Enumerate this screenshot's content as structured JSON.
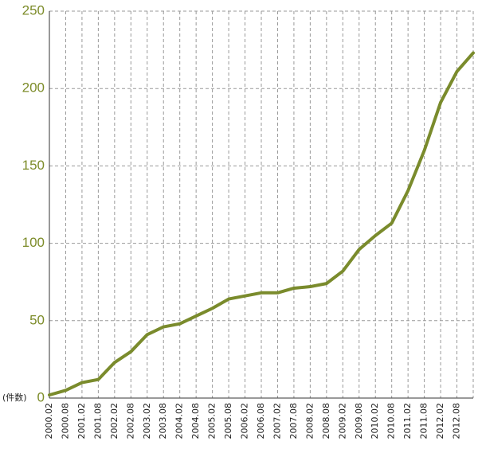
{
  "chart_data": {
    "type": "line",
    "y_label": "(件数)",
    "categories": [
      "2000.02",
      "2000.08",
      "2001.02",
      "2001.08",
      "2002.02",
      "2002.08",
      "2003.02",
      "2003.08",
      "2004.02",
      "2004.08",
      "2005.02",
      "2005.08",
      "2006.02",
      "2006.08",
      "2007.02",
      "2007.08",
      "2008.02",
      "2008.08",
      "2009.02",
      "2009.08",
      "2010.02",
      "2010.08",
      "2011.02",
      "2011.08",
      "2012.02",
      "2012.08",
      null
    ],
    "values": [
      2,
      5,
      10,
      12,
      23,
      30,
      41,
      46,
      48,
      53,
      58,
      64,
      66,
      68,
      68,
      71,
      72,
      74,
      82,
      96,
      105,
      113,
      134,
      160,
      191,
      211,
      223
    ],
    "color": "#7a8b2c",
    "ylim": [
      0,
      250
    ],
    "yticks": [
      0,
      50,
      100,
      150,
      200,
      250
    ],
    "grid": true
  }
}
